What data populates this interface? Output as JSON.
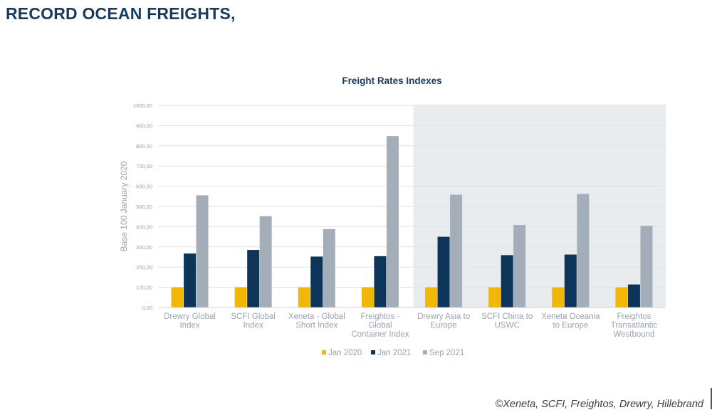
{
  "slide": {
    "title": "RECORD OCEAN FREIGHTS,",
    "source": "©Xeneta, SCFI, Freightos, Drewry, Hillebrand"
  },
  "colors": {
    "jan2020": "#f2b705",
    "jan2021": "#0d3459",
    "sep2021": "#a4aeb8",
    "highlight_bg": "#e9ecef",
    "grid": "#e2e2e2",
    "axis_text": "#9aa3ad"
  },
  "chart_data": {
    "type": "bar",
    "title": "Freight Rates Indexes",
    "xlabel": "",
    "ylabel": "Base 100 January 2020",
    "ylim": [
      0,
      1000
    ],
    "yticks": [
      "0,00",
      "100,00",
      "200,00",
      "300,00",
      "400,00",
      "500,00",
      "600,00",
      "700,00",
      "800,00",
      "900,00",
      "1000,00"
    ],
    "categories": [
      [
        "Drewry Global",
        "Index"
      ],
      [
        "SCFI Global",
        "Index"
      ],
      [
        "Xeneta - Global",
        "Short Index"
      ],
      [
        "Freightos -",
        "Global",
        "Container Index"
      ],
      [
        "Drewry Asia to",
        "Europe"
      ],
      [
        "SCFI China to",
        "USWC"
      ],
      [
        "Xeneta Oceania",
        "to Europe"
      ],
      [
        "Freightos",
        "Transatlantic",
        "Westbound"
      ]
    ],
    "highlighted_categories": [
      4,
      5,
      6,
      7
    ],
    "series": [
      {
        "name": "Jan 2020",
        "color_key": "jan2020",
        "values": [
          100,
          100,
          100,
          100,
          100,
          100,
          100,
          100
        ]
      },
      {
        "name": "Jan 2021",
        "color_key": "jan2021",
        "values": [
          267,
          285,
          252,
          254,
          350,
          259,
          262,
          114
        ]
      },
      {
        "name": "Sep 2021",
        "color_key": "sep2021",
        "values": [
          555,
          452,
          388,
          848,
          558,
          408,
          562,
          404
        ]
      }
    ],
    "legend": {
      "position": "bottom"
    }
  }
}
